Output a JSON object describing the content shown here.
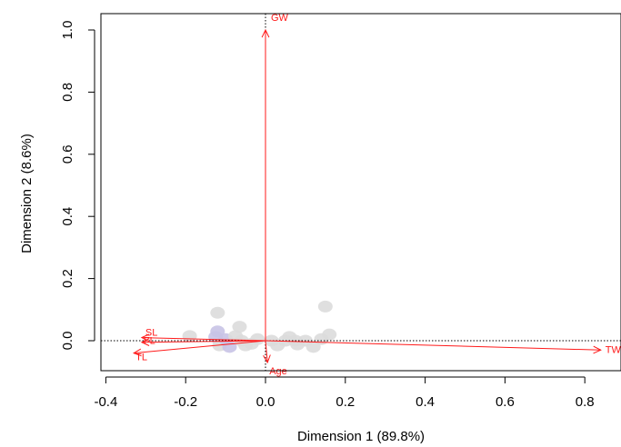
{
  "chart_data": {
    "type": "scatter",
    "xlabel": "Dimension 1 (89.8%)",
    "ylabel": "Dimension 2 (8.6%)",
    "xlim": [
      -0.42,
      0.9
    ],
    "ylim": [
      -0.1,
      1.04
    ],
    "x_ticks": [
      "-0.4",
      "-0.2",
      "0.0",
      "0.2",
      "0.4",
      "0.6",
      "0.8"
    ],
    "y_ticks": [
      "0.0",
      "0.2",
      "0.4",
      "0.6",
      "0.8",
      "1.0"
    ],
    "reference_lines": {
      "x": 0,
      "y": 0,
      "style": "dotted"
    },
    "colors": {
      "vector": "#ff1a1a",
      "point_grey": "#dcdcdc",
      "point_purple": "#c8c3e6",
      "axis": "#000000"
    },
    "vectors": [
      {
        "label": "GW",
        "x": 0.0,
        "y": 1.0
      },
      {
        "label": "TW",
        "x": 0.84,
        "y": -0.03
      },
      {
        "label": "SL",
        "x": -0.31,
        "y": 0.01
      },
      {
        "label": "FL",
        "x": -0.31,
        "y": -0.005
      },
      {
        "label": "TL",
        "x": -0.33,
        "y": -0.04
      },
      {
        "label": "Age",
        "x": 0.005,
        "y": -0.07
      }
    ],
    "points": [
      {
        "x": -0.19,
        "y": 0.015,
        "group": "grey"
      },
      {
        "x": -0.12,
        "y": 0.09,
        "group": "grey"
      },
      {
        "x": -0.12,
        "y": 0.03,
        "group": "purple"
      },
      {
        "x": -0.125,
        "y": 0.012,
        "group": "purple"
      },
      {
        "x": -0.115,
        "y": -0.015,
        "group": "grey"
      },
      {
        "x": -0.1,
        "y": 0.005,
        "group": "purple"
      },
      {
        "x": -0.09,
        "y": -0.02,
        "group": "purple"
      },
      {
        "x": -0.075,
        "y": 0.015,
        "group": "grey"
      },
      {
        "x": -0.065,
        "y": 0.045,
        "group": "grey"
      },
      {
        "x": -0.06,
        "y": 0.0,
        "group": "grey"
      },
      {
        "x": -0.05,
        "y": -0.015,
        "group": "grey"
      },
      {
        "x": -0.035,
        "y": -0.01,
        "group": "grey"
      },
      {
        "x": -0.02,
        "y": 0.005,
        "group": "grey"
      },
      {
        "x": 0.015,
        "y": 0.0,
        "group": "grey"
      },
      {
        "x": 0.03,
        "y": -0.015,
        "group": "grey"
      },
      {
        "x": 0.05,
        "y": 0.0,
        "group": "grey"
      },
      {
        "x": 0.06,
        "y": 0.012,
        "group": "grey"
      },
      {
        "x": 0.075,
        "y": 0.0,
        "group": "grey"
      },
      {
        "x": 0.08,
        "y": -0.012,
        "group": "grey"
      },
      {
        "x": 0.1,
        "y": 0.0,
        "group": "grey"
      },
      {
        "x": 0.12,
        "y": -0.02,
        "group": "grey"
      },
      {
        "x": 0.14,
        "y": 0.005,
        "group": "grey"
      },
      {
        "x": 0.15,
        "y": 0.11,
        "group": "grey"
      },
      {
        "x": 0.16,
        "y": 0.02,
        "group": "grey"
      }
    ]
  }
}
